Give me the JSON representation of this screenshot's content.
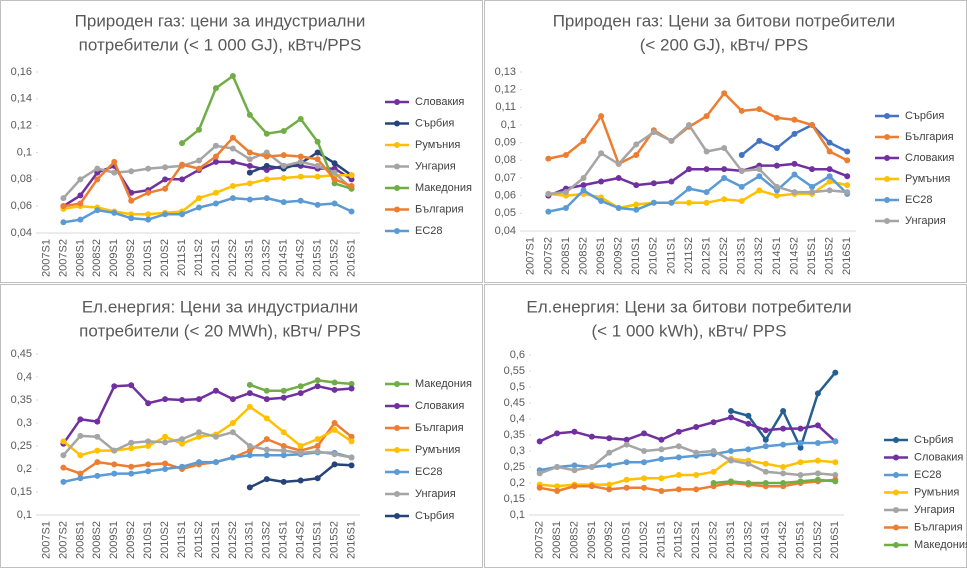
{
  "chart_data": [
    {
      "type": "line",
      "title": [
        "Природен газ: цени за индустриални",
        "потребители (< 1 000 GJ), кВтч/PPS"
      ],
      "categories": [
        "2007S1",
        "2007S2",
        "2008S1",
        "2008S2",
        "2009S1",
        "2009S2",
        "2010S1",
        "2010S2",
        "2011S1",
        "2011S2",
        "2012S1",
        "2012S2",
        "2013S1",
        "2013S2",
        "2014S1",
        "2014S2",
        "2015S1",
        "2015S2",
        "2016S1"
      ],
      "ylim": [
        0.04,
        0.16
      ],
      "yticks": [
        {
          "value": 0.04,
          "label": "0,04"
        },
        {
          "value": 0.06,
          "label": "0,06"
        },
        {
          "value": 0.08,
          "label": "0,08"
        },
        {
          "value": 0.1,
          "label": "0,1"
        },
        {
          "value": 0.12,
          "label": "0,12"
        },
        {
          "value": 0.14,
          "label": "0,14"
        },
        {
          "value": 0.16,
          "label": "0,16"
        }
      ],
      "legend": "right",
      "series": [
        {
          "name": "Словакия",
          "color": "#7030a0",
          "values": [
            null,
            0.06,
            0.068,
            0.085,
            0.09,
            0.07,
            0.072,
            0.08,
            0.08,
            0.087,
            0.093,
            0.093,
            0.09,
            0.087,
            0.09,
            0.09,
            0.088,
            0.088,
            0.08
          ]
        },
        {
          "name": "Сърбия",
          "color": "#264478",
          "values": [
            null,
            null,
            null,
            null,
            null,
            null,
            null,
            null,
            null,
            null,
            null,
            null,
            0.085,
            0.09,
            0.088,
            0.092,
            0.1,
            0.092,
            0.083
          ]
        },
        {
          "name": "Румъния",
          "color": "#ffc000",
          "values": [
            null,
            0.058,
            0.06,
            0.059,
            0.056,
            0.054,
            0.054,
            0.055,
            0.056,
            0.066,
            0.07,
            0.075,
            0.077,
            0.08,
            0.081,
            0.082,
            0.082,
            0.083,
            0.083
          ]
        },
        {
          "name": "Унгария",
          "color": "#a5a5a5",
          "values": [
            null,
            0.066,
            0.08,
            0.088,
            0.085,
            0.086,
            0.088,
            0.089,
            0.09,
            0.094,
            0.105,
            0.103,
            0.095,
            0.1,
            0.09,
            0.093,
            0.09,
            0.085,
            0.073
          ]
        },
        {
          "name": "Македония",
          "color": "#70ad47",
          "values": [
            null,
            null,
            null,
            null,
            null,
            null,
            null,
            null,
            0.107,
            0.117,
            0.148,
            0.157,
            0.128,
            0.114,
            0.116,
            0.125,
            0.108,
            0.077,
            0.073
          ]
        },
        {
          "name": "България",
          "color": "#ed7d31",
          "values": [
            null,
            0.06,
            0.062,
            0.08,
            0.093,
            0.064,
            0.07,
            0.073,
            0.091,
            0.088,
            0.097,
            0.111,
            0.1,
            0.097,
            0.098,
            0.097,
            0.095,
            0.08,
            0.075
          ]
        },
        {
          "name": "ЕС28",
          "color": "#5b9bd5",
          "values": [
            null,
            0.048,
            0.05,
            0.057,
            0.055,
            0.051,
            0.05,
            0.054,
            0.054,
            0.059,
            0.062,
            0.066,
            0.065,
            0.066,
            0.063,
            0.064,
            0.061,
            0.062,
            0.056
          ]
        }
      ]
    },
    {
      "type": "line",
      "title": [
        "Природен газ: Цени за битови потребители",
        "(< 200 GJ), кВтч/ PPS"
      ],
      "categories": [
        "2007S1",
        "2007S2",
        "2008S1",
        "2008S2",
        "2009S1",
        "2009S2",
        "2010S1",
        "2010S2",
        "2011S1",
        "2011S2",
        "2012S1",
        "2012S2",
        "2013S1",
        "2013S2",
        "2014S1",
        "2014S2",
        "2015S1",
        "2015S2",
        "2016S1"
      ],
      "ylim": [
        0.04,
        0.13
      ],
      "yticks": [
        {
          "value": 0.04,
          "label": "0,04"
        },
        {
          "value": 0.05,
          "label": "0,05"
        },
        {
          "value": 0.06,
          "label": "0,06"
        },
        {
          "value": 0.07,
          "label": "0,07"
        },
        {
          "value": 0.08,
          "label": "0,08"
        },
        {
          "value": 0.09,
          "label": "0,09"
        },
        {
          "value": 0.1,
          "label": "0,1"
        },
        {
          "value": 0.11,
          "label": "0,11"
        },
        {
          "value": 0.12,
          "label": "0,12"
        },
        {
          "value": 0.13,
          "label": "0,13"
        }
      ],
      "legend": "right",
      "series": [
        {
          "name": "Сърбия",
          "color": "#4472c4",
          "values": [
            null,
            null,
            null,
            null,
            null,
            null,
            null,
            null,
            null,
            null,
            null,
            null,
            0.083,
            0.091,
            0.087,
            0.095,
            0.1,
            0.09,
            0.085
          ]
        },
        {
          "name": "България",
          "color": "#ed7d31",
          "values": [
            null,
            0.081,
            0.083,
            0.091,
            0.105,
            0.078,
            0.083,
            0.097,
            0.091,
            0.099,
            0.105,
            0.118,
            0.108,
            0.109,
            0.104,
            0.103,
            0.1,
            0.085,
            0.08
          ]
        },
        {
          "name": "Словакия",
          "color": "#7030a0",
          "values": [
            null,
            0.06,
            0.064,
            0.066,
            0.068,
            0.07,
            0.066,
            0.067,
            0.068,
            0.075,
            0.075,
            0.075,
            0.074,
            0.077,
            0.077,
            0.078,
            0.075,
            0.075,
            0.071
          ]
        },
        {
          "name": "Румъния",
          "color": "#ffc000",
          "values": [
            null,
            0.061,
            0.06,
            0.061,
            0.059,
            0.053,
            0.055,
            0.056,
            0.056,
            0.056,
            0.056,
            0.058,
            0.057,
            0.063,
            0.06,
            0.061,
            0.061,
            0.068,
            0.066
          ]
        },
        {
          "name": "ЕС28",
          "color": "#5b9bd5",
          "values": [
            null,
            0.051,
            0.053,
            0.063,
            0.057,
            0.053,
            0.052,
            0.056,
            0.056,
            0.064,
            0.062,
            0.07,
            0.065,
            0.071,
            0.063,
            0.072,
            0.065,
            0.071,
            0.061
          ]
        },
        {
          "name": "Унгария",
          "color": "#a5a5a5",
          "values": [
            null,
            0.061,
            0.062,
            0.07,
            0.084,
            0.078,
            0.089,
            0.096,
            0.091,
            0.1,
            0.085,
            0.087,
            0.074,
            0.075,
            0.065,
            0.062,
            0.062,
            0.063,
            0.062
          ]
        }
      ]
    },
    {
      "type": "line",
      "title": [
        "Ел.енергия: Цени за индустриални",
        "потребители (< 20 MWh), кВтч/ PPS"
      ],
      "categories": [
        "2007S1",
        "2007S2",
        "2008S1",
        "2008S2",
        "2009S1",
        "2009S2",
        "2010S1",
        "2010S2",
        "2011S1",
        "2011S2",
        "2012S1",
        "2012S2",
        "2013S1",
        "2013S2",
        "2014S1",
        "2014S2",
        "2015S1",
        "2015S2",
        "2016S1"
      ],
      "ylim": [
        0.1,
        0.45
      ],
      "yticks": [
        {
          "value": 0.1,
          "label": "0,1"
        },
        {
          "value": 0.15,
          "label": "0,15"
        },
        {
          "value": 0.2,
          "label": "0,2"
        },
        {
          "value": 0.25,
          "label": "0,25"
        },
        {
          "value": 0.3,
          "label": "0,3"
        },
        {
          "value": 0.35,
          "label": "0,35"
        },
        {
          "value": 0.4,
          "label": "0,4"
        },
        {
          "value": 0.45,
          "label": "0,45"
        }
      ],
      "legend": "right",
      "series": [
        {
          "name": "Македония",
          "color": "#70ad47",
          "values": [
            null,
            null,
            null,
            null,
            null,
            null,
            null,
            null,
            null,
            null,
            null,
            null,
            0.383,
            0.37,
            0.37,
            0.38,
            0.393,
            0.388,
            0.385
          ]
        },
        {
          "name": "Словакия",
          "color": "#7030a0",
          "values": [
            null,
            0.255,
            0.308,
            0.303,
            0.38,
            0.382,
            0.343,
            0.352,
            0.35,
            0.352,
            0.37,
            0.352,
            0.365,
            0.352,
            0.355,
            0.365,
            0.38,
            0.372,
            0.375
          ]
        },
        {
          "name": "България",
          "color": "#ed7d31",
          "values": [
            null,
            0.203,
            0.19,
            0.215,
            0.21,
            0.205,
            0.21,
            0.212,
            0.2,
            0.21,
            0.215,
            0.225,
            0.24,
            0.265,
            0.25,
            0.24,
            0.25,
            0.3,
            0.27
          ]
        },
        {
          "name": "Румъния",
          "color": "#ffc000",
          "values": [
            null,
            0.26,
            0.23,
            0.24,
            0.24,
            0.245,
            0.25,
            0.27,
            0.255,
            0.27,
            0.275,
            0.3,
            0.335,
            0.31,
            0.28,
            0.25,
            0.265,
            0.285,
            0.26
          ]
        },
        {
          "name": "ЕС28",
          "color": "#5b9bd5",
          "values": [
            null,
            0.172,
            0.18,
            0.185,
            0.19,
            0.19,
            0.195,
            0.2,
            0.205,
            0.215,
            0.215,
            0.225,
            0.23,
            0.23,
            0.23,
            0.232,
            0.236,
            0.235,
            0.225
          ]
        },
        {
          "name": "Унгария",
          "color": "#a5a5a5",
          "values": [
            null,
            0.23,
            0.272,
            0.27,
            0.24,
            0.257,
            0.26,
            0.258,
            0.265,
            0.28,
            0.27,
            0.28,
            0.25,
            0.242,
            0.24,
            0.235,
            0.238,
            0.232,
            0.225
          ]
        },
        {
          "name": "Сърбия",
          "color": "#264478",
          "values": [
            null,
            null,
            null,
            null,
            null,
            null,
            null,
            null,
            null,
            null,
            null,
            null,
            0.16,
            0.178,
            0.172,
            0.175,
            0.18,
            0.21,
            0.208
          ]
        }
      ]
    },
    {
      "type": "line",
      "title": [
        "Ел.енергия: Цени за битови потребители",
        "(< 1 000 kWh), кВтч/ PPS"
      ],
      "categories": [
        "2007S2",
        "2008S1",
        "2008S2",
        "2009S1",
        "2009S2",
        "2010S1",
        "2010S2",
        "2011S1",
        "2011S2",
        "2012S1",
        "2012S2",
        "2013S1",
        "2013S2",
        "2014S1",
        "2014S2",
        "2015S1",
        "2015S2",
        "2016S1"
      ],
      "ylim": [
        0.1,
        0.6
      ],
      "yticks": [
        {
          "value": 0.1,
          "label": "0,1"
        },
        {
          "value": 0.15,
          "label": "0,15"
        },
        {
          "value": 0.2,
          "label": "0,2"
        },
        {
          "value": 0.25,
          "label": "0,25"
        },
        {
          "value": 0.3,
          "label": "0,3"
        },
        {
          "value": 0.35,
          "label": "0,35"
        },
        {
          "value": 0.4,
          "label": "0,4"
        },
        {
          "value": 0.45,
          "label": "0,45"
        },
        {
          "value": 0.5,
          "label": "0,5"
        },
        {
          "value": 0.55,
          "label": "0,55"
        },
        {
          "value": 0.6,
          "label": "0,6"
        }
      ],
      "legend": "right",
      "series": [
        {
          "name": "Сърбия",
          "color": "#255e91",
          "values": [
            null,
            null,
            null,
            null,
            null,
            null,
            null,
            null,
            null,
            null,
            null,
            0.425,
            0.41,
            0.335,
            0.425,
            0.31,
            0.48,
            0.545
          ]
        },
        {
          "name": "Словакия",
          "color": "#7030a0",
          "values": [
            0.33,
            0.355,
            0.36,
            0.345,
            0.34,
            0.335,
            0.355,
            0.335,
            0.36,
            0.375,
            0.39,
            0.405,
            0.385,
            0.365,
            0.37,
            0.37,
            0.38,
            0.33
          ]
        },
        {
          "name": "ЕС28",
          "color": "#5b9bd5",
          "values": [
            0.24,
            0.25,
            0.255,
            0.25,
            0.255,
            0.265,
            0.265,
            0.275,
            0.28,
            0.285,
            0.29,
            0.3,
            0.305,
            0.315,
            0.32,
            0.325,
            0.325,
            0.33
          ]
        },
        {
          "name": "Румъния",
          "color": "#ffc000",
          "values": [
            0.195,
            0.19,
            0.195,
            0.195,
            0.195,
            0.21,
            0.215,
            0.215,
            0.225,
            0.225,
            0.235,
            0.275,
            0.27,
            0.26,
            0.25,
            0.265,
            0.27,
            0.265
          ]
        },
        {
          "name": "Унгария",
          "color": "#a5a5a5",
          "values": [
            0.23,
            0.25,
            0.24,
            0.25,
            0.295,
            0.32,
            0.3,
            0.305,
            0.315,
            0.295,
            0.3,
            0.27,
            0.26,
            0.235,
            0.23,
            0.225,
            0.23,
            0.225
          ]
        },
        {
          "name": "България",
          "color": "#ed7d31",
          "values": [
            0.185,
            0.175,
            0.19,
            0.19,
            0.18,
            0.185,
            0.185,
            0.175,
            0.18,
            0.18,
            0.19,
            0.2,
            0.195,
            0.19,
            0.19,
            0.2,
            0.205,
            0.21
          ]
        },
        {
          "name": "Македония",
          "color": "#70ad47",
          "values": [
            null,
            null,
            null,
            null,
            null,
            null,
            null,
            null,
            null,
            null,
            0.2,
            0.205,
            0.2,
            0.2,
            0.2,
            0.205,
            0.21,
            0.205
          ]
        }
      ]
    }
  ]
}
